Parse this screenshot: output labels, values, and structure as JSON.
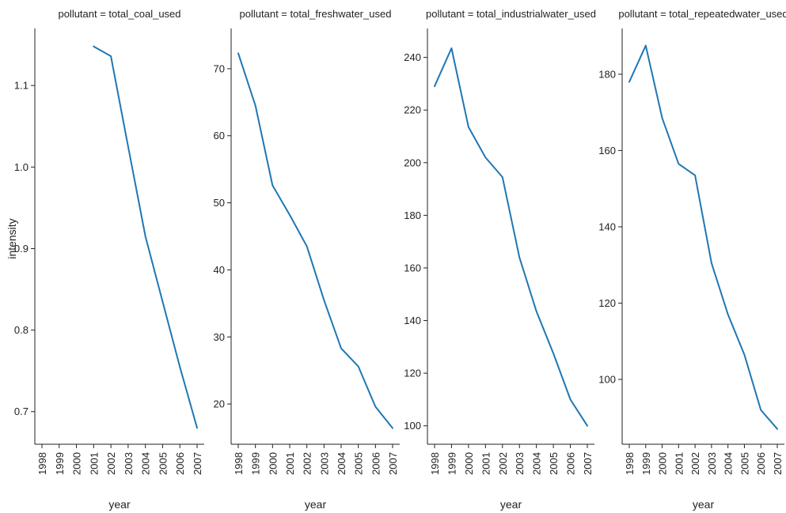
{
  "figure": {
    "ylabel": "intensity",
    "line_color": "#1f77b4"
  },
  "chart_data": [
    {
      "type": "line",
      "title": "pollutant = total_coal_used",
      "xlabel": "year",
      "ylabel": "intensity",
      "x": [
        "1998",
        "1999",
        "2000",
        "2001",
        "2002",
        "2003",
        "2004",
        "2005",
        "2006",
        "2007"
      ],
      "series": [
        {
          "values": [
            null,
            null,
            null,
            1.148,
            1.136,
            1.025,
            0.915,
            0.835,
            0.755,
            0.68
          ]
        }
      ],
      "ylim": [
        0.66,
        1.17
      ],
      "yticks": [
        0.7,
        0.8,
        0.9,
        1.0,
        1.1
      ],
      "ytick_labels": [
        "0.7",
        "0.8",
        "0.9",
        "1.0",
        "1.1"
      ]
    },
    {
      "type": "line",
      "title": "pollutant = total_freshwater_used",
      "xlabel": "year",
      "x": [
        "1998",
        "1999",
        "2000",
        "2001",
        "2002",
        "2003",
        "2004",
        "2005",
        "2006",
        "2007"
      ],
      "series": [
        {
          "values": [
            72.3,
            64.5,
            52.6,
            48.2,
            43.5,
            35.5,
            28.3,
            25.6,
            19.6,
            16.4
          ]
        }
      ],
      "ylim": [
        14,
        76
      ],
      "yticks": [
        20,
        30,
        40,
        50,
        60,
        70
      ],
      "ytick_labels": [
        "20",
        "30",
        "40",
        "50",
        "60",
        "70"
      ]
    },
    {
      "type": "line",
      "title": "pollutant = total_industrialwater_used",
      "xlabel": "year",
      "x": [
        "1998",
        "1999",
        "2000",
        "2001",
        "2002",
        "2003",
        "2004",
        "2005",
        "2006",
        "2007"
      ],
      "series": [
        {
          "values": [
            229,
            243.5,
            213.5,
            202,
            194.5,
            164,
            143.5,
            127.5,
            110,
            100
          ]
        }
      ],
      "ylim": [
        93,
        251
      ],
      "yticks": [
        100,
        120,
        140,
        160,
        180,
        200,
        220,
        240
      ],
      "ytick_labels": [
        "100",
        "120",
        "140",
        "160",
        "180",
        "200",
        "220",
        "240"
      ]
    },
    {
      "type": "line",
      "title": "pollutant = total_repeatedwater_used",
      "xlabel": "year",
      "x": [
        "1998",
        "1999",
        "2000",
        "2001",
        "2002",
        "2003",
        "2004",
        "2005",
        "2006",
        "2007"
      ],
      "series": [
        {
          "values": [
            178,
            187.5,
            168.5,
            156.5,
            153.5,
            130.5,
            117,
            106.5,
            92,
            87
          ]
        }
      ],
      "ylim": [
        83,
        192
      ],
      "yticks": [
        100,
        120,
        140,
        160,
        180
      ],
      "ytick_labels": [
        "100",
        "120",
        "140",
        "160",
        "180"
      ]
    }
  ]
}
